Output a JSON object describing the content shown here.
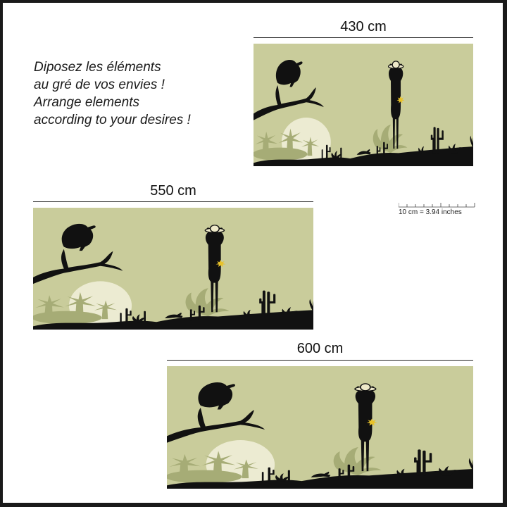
{
  "intro": {
    "line1": "Diposez les éléments",
    "line2": "au gré de vos envies !",
    "line3": "Arrange elements",
    "line4": "according to your desires !"
  },
  "panels": [
    {
      "size_label": "430 cm"
    },
    {
      "size_label": "550 cm"
    },
    {
      "size_label": "600 cm"
    }
  ],
  "scale": {
    "label": "10 cm = 3.94 inches"
  },
  "colors": {
    "panel_bg": "#c9cc9b",
    "sun": "#ecebd2",
    "silhouette": "#111111",
    "palm": "#a6ac76",
    "flower": "#e8c22a"
  }
}
